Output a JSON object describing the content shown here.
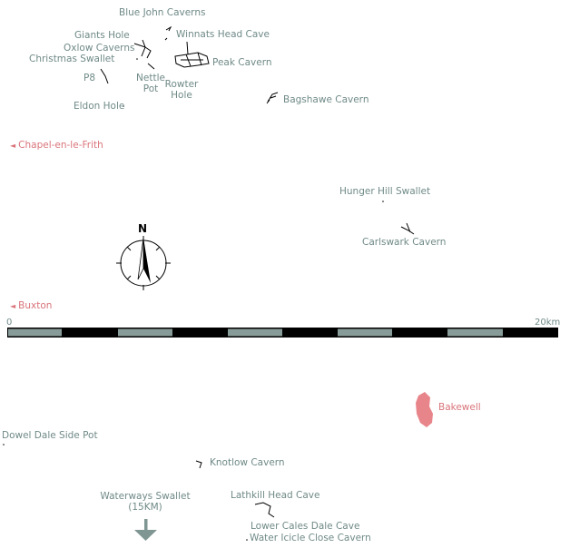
{
  "caves": {
    "blue_john": "Blue John Caverns",
    "giants_hole": "Giants Hole",
    "winnats": "Winnats Head Cave",
    "oxlow": "Oxlow Caverns",
    "christmas": "Christmas Swallet",
    "peak": "Peak Cavern",
    "p8": "P8",
    "nettle_line1": "Nettle",
    "nettle_line2": "Pot",
    "rowter_line1": "Rowter",
    "rowter_line2": "Hole",
    "eldon": "Eldon Hole",
    "bagshawe": "Bagshawe Cavern",
    "hunger_hill": "Hunger Hill Swallet",
    "carlswark": "Carlswark Cavern",
    "dowel_dale": "Dowel Dale Side Pot",
    "knotlow": "Knotlow Cavern",
    "waterways_line1": "Waterways Swallet",
    "waterways_line2": "(15KM)",
    "lathkill": "Lathkill Head Cave",
    "lower_cales": "Lower Cales Dale Cave",
    "water_icicle": "Water Icicle Close Cavern"
  },
  "towns": {
    "chapel": "Chapel-en-le-Frith",
    "buxton": "Buxton",
    "bakewell": "Bakewell"
  },
  "compass": {
    "north": "N"
  },
  "scale_bar": {
    "start_label": "0",
    "end_label": "20km",
    "length_km": 20,
    "segments": 10
  },
  "colors": {
    "cave_label": "#6f8a87",
    "town_label": "#d9747a",
    "town_area": "#e8858b",
    "scale_light": "#879b98",
    "scale_dark": "#000000",
    "arrow": "#7f9693"
  }
}
